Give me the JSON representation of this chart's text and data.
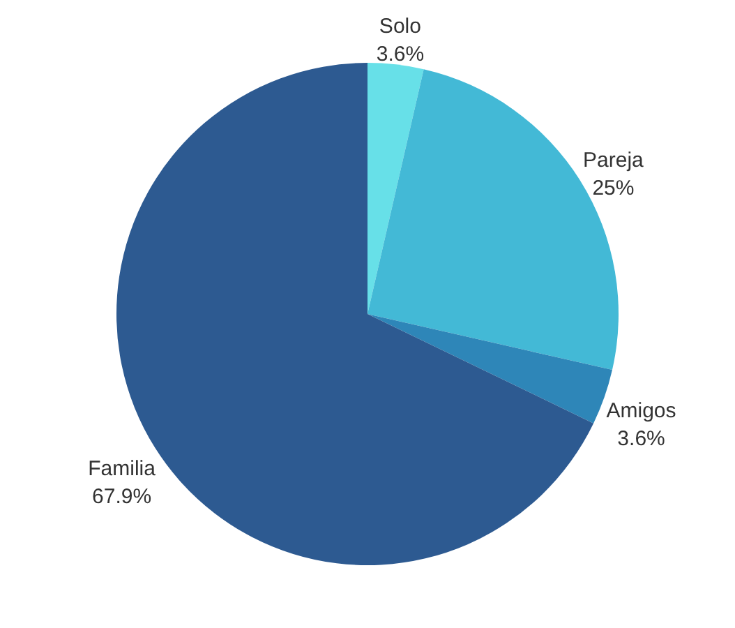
{
  "chart_data": {
    "type": "pie",
    "categories": [
      "Solo",
      "Pareja",
      "Amigos",
      "Familia"
    ],
    "values": [
      3.6,
      25,
      3.6,
      67.9
    ],
    "colors": [
      "#67e0e8",
      "#43b9d6",
      "#2e86b8",
      "#2d5a91"
    ],
    "value_labels": [
      "3.6%",
      "25%",
      "3.6%",
      "67.9%"
    ]
  }
}
